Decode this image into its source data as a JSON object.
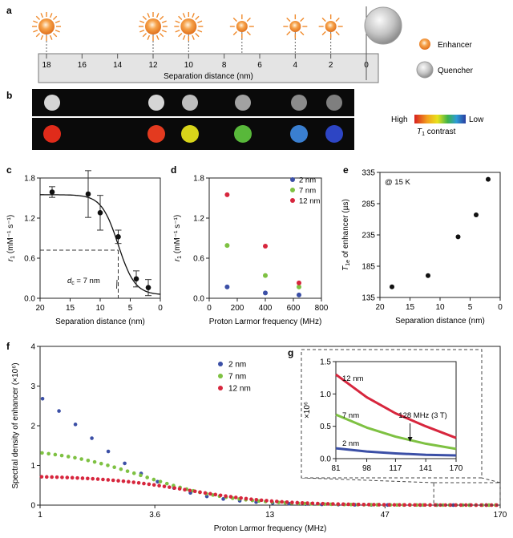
{
  "panels": {
    "a": {
      "letter": "a",
      "axis_title": "Separation distance (nm)",
      "ticks": [
        "18",
        "16",
        "14",
        "12",
        "10",
        "8",
        "6",
        "4",
        "2",
        "0"
      ],
      "legend": {
        "enhancer": "Enhancer",
        "quencher": "Quencher"
      },
      "enhancer_positions_nm": [
        18,
        12,
        10,
        7,
        4,
        2
      ]
    },
    "b": {
      "letter": "b",
      "scale_high": "High",
      "scale_low": "Low",
      "scale_caption_symbol": "T",
      "scale_caption_sub": "1",
      "scale_caption_rest": " contrast",
      "top_row_gray_levels": [
        0.92,
        0.92,
        0.82,
        0.7,
        0.6,
        0.55
      ],
      "bottom_row_colors": [
        "#e02b1a",
        "#e33a1f",
        "#d8d51a",
        "#58b83a",
        "#3a7fd0",
        "#2d45c4"
      ]
    },
    "c": {
      "letter": "c",
      "annotation": "dₙ = 7 nm",
      "ann_main": "d",
      "ann_sub": "c",
      "ann_rest": " = 7 nm"
    },
    "d": {
      "letter": "d"
    },
    "e": {
      "letter": "e",
      "annotation": "@ 15 K"
    },
    "f": {
      "letter": "f"
    },
    "g": {
      "letter": "g",
      "annotation": "128 MHz (3 T)",
      "series_labels": [
        "12 nm",
        "7 nm",
        "2 nm"
      ]
    }
  },
  "colors": {
    "blue": "#3b4fa6",
    "green": "#7ec142",
    "red": "#d7263d",
    "enhancer": "#f08a2c",
    "quencher": "#b8b8b8"
  },
  "chart_data": [
    {
      "id": "c",
      "type": "scatter",
      "title": "",
      "xlabel": "Separation distance (nm)",
      "ylabel_main": "r",
      "ylabel_sub": "1",
      "ylabel_rest": " (mM⁻¹ s⁻¹)",
      "xlim": [
        20,
        0
      ],
      "ylim": [
        0,
        1.8
      ],
      "xticks": [
        "20",
        "15",
        "10",
        "5",
        "0"
      ],
      "yticks": [
        "0.0",
        "0.6",
        "1.2",
        "1.8"
      ],
      "points": [
        {
          "x": 18,
          "y": 1.59,
          "err": 0.08
        },
        {
          "x": 12,
          "y": 1.56,
          "err": 0.35
        },
        {
          "x": 10,
          "y": 1.28,
          "err": 0.26
        },
        {
          "x": 7,
          "y": 0.92,
          "err": 0.1
        },
        {
          "x": 4,
          "y": 0.29,
          "err": 0.12
        },
        {
          "x": 2,
          "y": 0.16,
          "err": 0.12
        }
      ],
      "dc": 7,
      "dc_y": 0.72
    },
    {
      "id": "d",
      "type": "scatter",
      "title": "",
      "xlabel": "Proton Larmor frequency (MHz)",
      "ylabel_main": "r",
      "ylabel_sub": "1",
      "ylabel_rest": " (mM⁻¹ s⁻¹)",
      "xlim": [
        0,
        800
      ],
      "ylim": [
        0,
        1.8
      ],
      "xticks": [
        "0",
        "200",
        "400",
        "600",
        "800"
      ],
      "yticks": [
        "0.0",
        "0.6",
        "1.2",
        "1.8"
      ],
      "legend_position": "top-right",
      "series": [
        {
          "name": "2 nm",
          "color": "#3b4fa6",
          "x": [
            128,
            400,
            640
          ],
          "y": [
            0.17,
            0.08,
            0.05
          ]
        },
        {
          "name": "7 nm",
          "color": "#7ec142",
          "x": [
            128,
            400,
            640
          ],
          "y": [
            0.79,
            0.34,
            0.17
          ]
        },
        {
          "name": "12 nm",
          "color": "#d7263d",
          "x": [
            128,
            400,
            640
          ],
          "y": [
            1.55,
            0.78,
            0.23
          ]
        }
      ]
    },
    {
      "id": "e",
      "type": "scatter",
      "title": "",
      "xlabel": "Separation distance (nm)",
      "ylabel_main": "T",
      "ylabel_sub": "1e",
      "ylabel_rest": " of enhancer (µs)",
      "xlim": [
        20,
        0
      ],
      "ylim": [
        135,
        335
      ],
      "xticks": [
        "20",
        "15",
        "10",
        "5",
        "0"
      ],
      "yticks": [
        "135",
        "185",
        "235",
        "285",
        "335"
      ],
      "points": [
        {
          "x": 18,
          "y": 152
        },
        {
          "x": 12,
          "y": 170
        },
        {
          "x": 7,
          "y": 232
        },
        {
          "x": 4,
          "y": 267
        },
        {
          "x": 2,
          "y": 324
        }
      ]
    },
    {
      "id": "f",
      "type": "scatter",
      "title": "",
      "xlabel": "Proton Larmor frequency (MHz)",
      "ylabel": "Spectral density of enhancer (×10⁶)",
      "xscale": "log",
      "xlim": [
        1,
        170
      ],
      "ylim": [
        0,
        4
      ],
      "xticks": [
        "1",
        "3.6",
        "13",
        "47",
        "170"
      ],
      "yticks": [
        "0",
        "1",
        "2",
        "3",
        "4"
      ],
      "legend_position": "top-center",
      "series": [
        {
          "name": "2 nm",
          "color": "#3b4fa6",
          "tau": 0.1,
          "amp": 3.8
        },
        {
          "name": "7 nm",
          "color": "#7ec142",
          "tau": 0.05,
          "amp": 1.45
        },
        {
          "name": "12 nm",
          "color": "#d7263d",
          "tau": 0.03,
          "amp": 0.74
        }
      ]
    },
    {
      "id": "g",
      "type": "line",
      "title": "",
      "ylabel": "×10⁶",
      "xlim": [
        81,
        170
      ],
      "ylim": [
        0,
        1.5
      ],
      "xticks": [
        "81",
        "98",
        "117",
        "141",
        "170"
      ],
      "yticks": [
        "0.0",
        "0.5",
        "1.0",
        "1.5"
      ],
      "series": [
        {
          "name": "12 nm",
          "color": "#d7263d",
          "x": [
            81,
            98,
            117,
            141,
            170
          ],
          "y": [
            1.3,
            0.95,
            0.7,
            0.5,
            0.32
          ]
        },
        {
          "name": "7 nm",
          "color": "#7ec142",
          "x": [
            81,
            98,
            117,
            141,
            170
          ],
          "y": [
            0.68,
            0.48,
            0.34,
            0.23,
            0.15
          ]
        },
        {
          "name": "2 nm",
          "color": "#3b4fa6",
          "x": [
            81,
            98,
            117,
            141,
            170
          ],
          "y": [
            0.16,
            0.11,
            0.08,
            0.06,
            0.05
          ]
        }
      ],
      "marker_x": 128
    }
  ]
}
